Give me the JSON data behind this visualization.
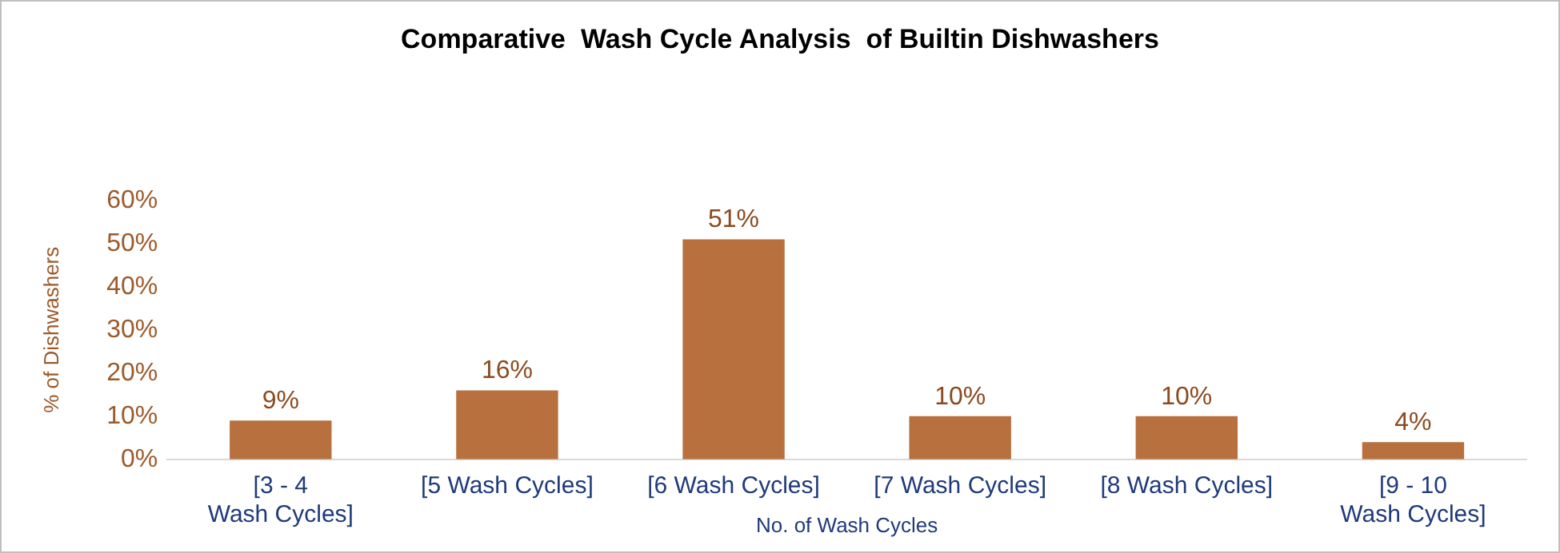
{
  "chart_data": {
    "type": "bar",
    "title": "Comparative  Wash Cycle Analysis  of Builtin Dishwashers",
    "xlabel": "No. of Wash Cycles",
    "ylabel": "% of Dishwashers",
    "categories": [
      "[3 - 4 Wash Cycles]",
      "[5 Wash Cycles]",
      "[6 Wash Cycles]",
      "[7 Wash Cycles]",
      "[8 Wash Cycles]",
      "[9 - 10 Wash Cycles]"
    ],
    "values": [
      9,
      16,
      51,
      10,
      10,
      4
    ],
    "value_labels": [
      "9%",
      "16%",
      "51%",
      "10%",
      "10%",
      "4%"
    ],
    "color": "#b8703e",
    "ylim": [
      0,
      60
    ],
    "yticks": [
      {
        "value": 0,
        "label": "0%"
      },
      {
        "value": 10,
        "label": "10%"
      },
      {
        "value": 20,
        "label": "20%"
      },
      {
        "value": 30,
        "label": "30%"
      },
      {
        "value": 40,
        "label": "40%"
      },
      {
        "value": 50,
        "label": "50%"
      },
      {
        "value": 60,
        "label": "60%"
      }
    ],
    "grid": false,
    "legend": false
  }
}
